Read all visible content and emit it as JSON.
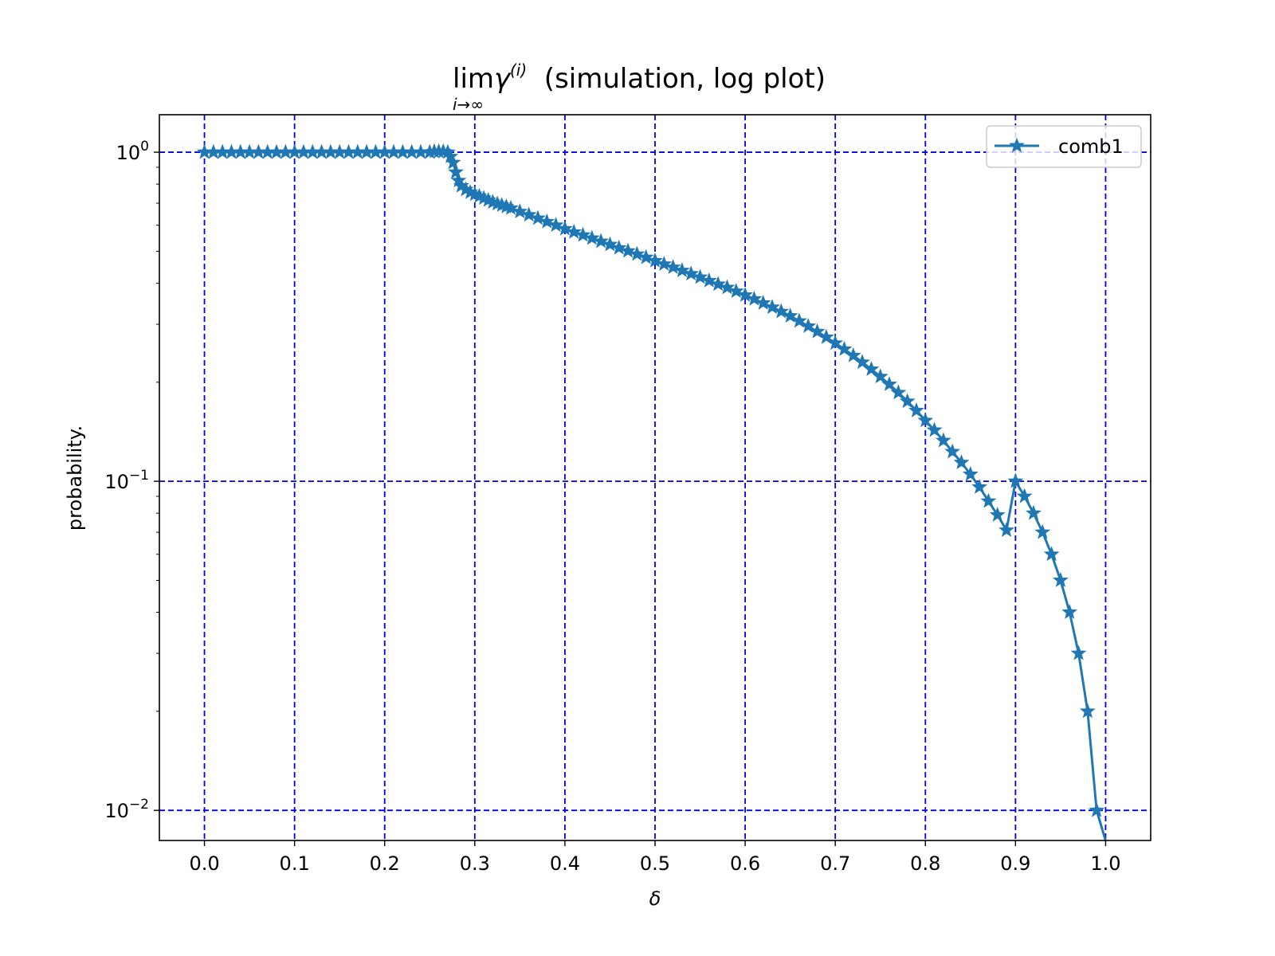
{
  "chart_data": {
    "type": "line",
    "title": {
      "lim": "lim",
      "gamma": "γ",
      "sup": "(i)",
      "sub": "i→∞",
      "rest": " (simulation, log plot)"
    },
    "xlabel": "δ",
    "ylabel": "probability.",
    "xlim": [
      -0.05,
      1.05
    ],
    "ylim": [
      0.0081,
      1.3
    ],
    "yscale": "log",
    "xticks": [
      0.0,
      0.1,
      0.2,
      0.3,
      0.4,
      0.5,
      0.6,
      0.7,
      0.8,
      0.9,
      1.0
    ],
    "xtick_labels": [
      "0.0",
      "0.1",
      "0.2",
      "0.3",
      "0.4",
      "0.5",
      "0.6",
      "0.7",
      "0.8",
      "0.9",
      "1.0"
    ],
    "yticks": [
      {
        "value": 1,
        "base": "10",
        "exp": "0"
      },
      {
        "value": 0.1,
        "base": "10",
        "exp": "−1"
      },
      {
        "value": 0.01,
        "base": "10",
        "exp": "−2"
      }
    ],
    "grid": true,
    "grid_color": "#0000ee",
    "series_color": "#1f77b4",
    "legend_position": "upper right",
    "series": [
      {
        "name": "comb1",
        "marker": "star",
        "x": [
          0.0,
          0.01,
          0.02,
          0.03,
          0.04,
          0.05,
          0.06,
          0.07,
          0.08,
          0.09,
          0.1,
          0.11,
          0.12,
          0.13,
          0.14,
          0.15,
          0.16,
          0.17,
          0.18,
          0.19,
          0.2,
          0.21,
          0.22,
          0.23,
          0.24,
          0.25,
          0.255,
          0.26,
          0.265,
          0.27,
          0.273,
          0.276,
          0.279,
          0.282,
          0.285,
          0.29,
          0.295,
          0.3,
          0.305,
          0.31,
          0.315,
          0.32,
          0.325,
          0.33,
          0.335,
          0.34,
          0.35,
          0.36,
          0.37,
          0.38,
          0.39,
          0.4,
          0.41,
          0.42,
          0.43,
          0.44,
          0.45,
          0.46,
          0.47,
          0.48,
          0.49,
          0.5,
          0.51,
          0.52,
          0.53,
          0.54,
          0.55,
          0.56,
          0.57,
          0.58,
          0.59,
          0.6,
          0.61,
          0.62,
          0.63,
          0.64,
          0.65,
          0.66,
          0.67,
          0.68,
          0.69,
          0.7,
          0.71,
          0.72,
          0.73,
          0.74,
          0.75,
          0.76,
          0.77,
          0.78,
          0.79,
          0.8,
          0.81,
          0.82,
          0.83,
          0.84,
          0.85,
          0.86,
          0.87,
          0.88,
          0.89,
          0.9,
          0.91,
          0.92,
          0.93,
          0.94,
          0.95,
          0.96,
          0.97,
          0.98,
          0.99,
          0.9999
        ],
        "y": [
          1.0,
          1.0,
          1.0,
          1.0,
          1.0,
          1.0,
          1.0,
          1.0,
          1.0,
          1.0,
          1.0,
          1.0,
          1.0,
          1.0,
          1.0,
          1.0,
          1.0,
          1.0,
          1.0,
          1.0,
          1.0,
          1.0,
          1.0,
          1.0,
          1.0,
          1.0,
          1.005,
          1.005,
          1.005,
          1.0,
          0.97,
          0.93,
          0.87,
          0.82,
          0.79,
          0.77,
          0.755,
          0.745,
          0.735,
          0.725,
          0.715,
          0.705,
          0.697,
          0.69,
          0.683,
          0.676,
          0.66,
          0.645,
          0.63,
          0.615,
          0.6,
          0.585,
          0.572,
          0.56,
          0.548,
          0.536,
          0.524,
          0.512,
          0.501,
          0.49,
          0.479,
          0.468,
          0.457,
          0.447,
          0.437,
          0.427,
          0.417,
          0.407,
          0.397,
          0.388,
          0.378,
          0.368,
          0.358,
          0.348,
          0.338,
          0.328,
          0.318,
          0.307,
          0.296,
          0.285,
          0.274,
          0.263,
          0.252,
          0.241,
          0.23,
          0.219,
          0.208,
          0.197,
          0.186,
          0.175,
          0.164,
          0.153,
          0.143,
          0.133,
          0.123,
          0.114,
          0.105,
          0.096,
          0.087,
          0.079,
          0.071,
          0.1,
          0.09,
          0.08,
          0.07,
          0.06,
          0.05,
          0.04,
          0.03,
          0.02,
          0.01,
          0.0075
        ]
      }
    ]
  }
}
